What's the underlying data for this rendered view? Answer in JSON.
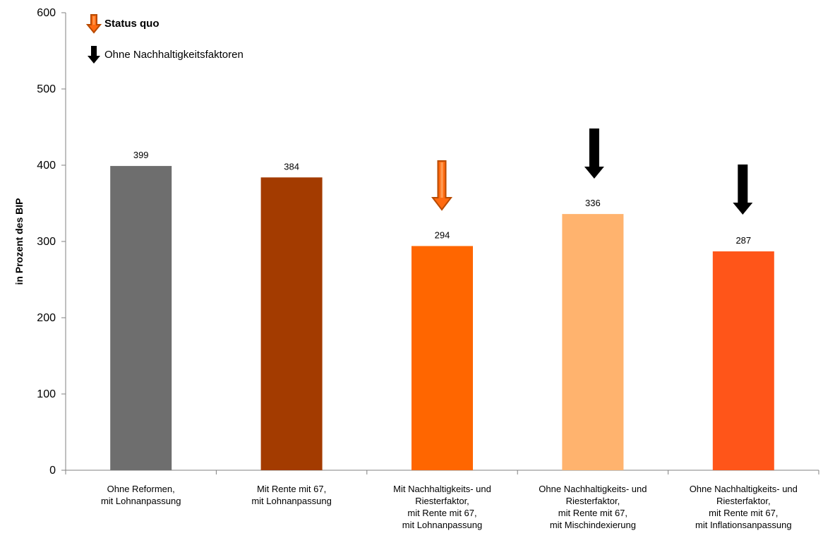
{
  "chart_data": {
    "type": "bar",
    "categories": [
      [
        "Ohne Reformen,",
        "mit Lohnanpassung"
      ],
      [
        "Mit Rente mit 67,",
        "mit Lohnanpassung"
      ],
      [
        "Mit Nachhaltigkeits- und",
        "Riesterfaktor,",
        "mit Rente mit 67,",
        "mit Lohnanpassung"
      ],
      [
        "Ohne Nachhaltigkeits- und",
        "Riesterfaktor,",
        "mit Rente mit 67,",
        "mit Mischindexierung"
      ],
      [
        "Ohne Nachhaltigkeits- und",
        "Riesterfaktor,",
        "mit Rente mit 67,",
        "mit Inflationsanpassung"
      ]
    ],
    "values": [
      399,
      384,
      294,
      336,
      287
    ],
    "data_labels": [
      "399",
      "384",
      "294",
      "336",
      "287"
    ],
    "bar_colors": [
      "#6e6e6e",
      "#a33b00",
      "#ff6600",
      "#ffb36e",
      "#ff5519"
    ],
    "ylabel": "in Prozent des BIP",
    "ylim": [
      0,
      600
    ],
    "yticks": [
      0,
      100,
      200,
      300,
      400,
      500,
      600
    ],
    "grid": false,
    "legend": {
      "placement": "top-left",
      "entries": [
        {
          "label": "Status quo",
          "icon": "orange-down-arrow-icon",
          "color": "#d9581a"
        },
        {
          "label": "Ohne Nachhaltigkeitsfaktoren",
          "icon": "black-down-arrow-icon",
          "color": "#000000"
        }
      ]
    },
    "markers": [
      {
        "category_index": 2,
        "type": "status-quo",
        "color": "#d9581a"
      },
      {
        "category_index": 3,
        "type": "ohne-nachhaltigkeitsfaktoren",
        "color": "#000000"
      },
      {
        "category_index": 4,
        "type": "ohne-nachhaltigkeitsfaktoren",
        "color": "#000000"
      }
    ]
  }
}
